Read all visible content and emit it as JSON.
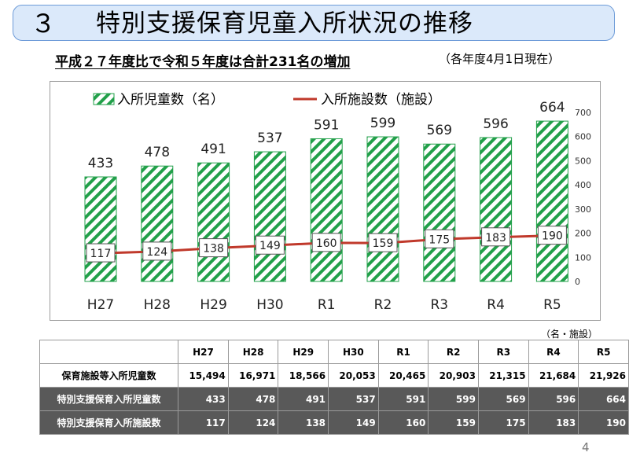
{
  "header": {
    "number": "３",
    "title": "特別支援保育児童入所状況の推移"
  },
  "subtitle": "平成２７年度比で令和５年度は合計231名の増加",
  "as_of_note": "（各年度4月1日現在）",
  "unit_note": "（名・施設）",
  "page_number": "4",
  "colors": {
    "bar_stripe": "#22a04a",
    "line": "#c0392b",
    "header_bg": "#dbe9fa",
    "header_border": "#6d9bd8",
    "dark_row_bg": "#595959"
  },
  "chart_data": {
    "type": "bar",
    "categories": [
      "H27",
      "H28",
      "H29",
      "H30",
      "R1",
      "R2",
      "R3",
      "R4",
      "R5"
    ],
    "series": [
      {
        "name": "入所児童数（名）",
        "kind": "bar",
        "values": [
          433,
          478,
          491,
          537,
          591,
          599,
          569,
          596,
          664
        ]
      },
      {
        "name": "入所施設数（施設）",
        "kind": "line",
        "values": [
          117,
          124,
          138,
          149,
          160,
          159,
          175,
          183,
          190
        ]
      }
    ],
    "ylim": [
      0,
      700
    ],
    "yticks": [
      "0",
      "100",
      "200",
      "300",
      "400",
      "500",
      "600",
      "700"
    ],
    "legend": [
      "入所児童数（名）",
      "入所施設数（施設）"
    ],
    "legend_position": "top-left",
    "grid": false
  },
  "table": {
    "headers": [
      "H27",
      "H28",
      "H29",
      "H30",
      "R1",
      "R2",
      "R3",
      "R4",
      "R5"
    ],
    "rows": [
      {
        "label": "保育施設等入所児童数",
        "values": [
          "15,494",
          "16,971",
          "18,566",
          "20,053",
          "20,465",
          "20,903",
          "21,315",
          "21,684",
          "21,926"
        ]
      },
      {
        "label": "特別支援保育入所児童数",
        "values": [
          "433",
          "478",
          "491",
          "537",
          "591",
          "599",
          "569",
          "596",
          "664"
        ]
      },
      {
        "label": "特別支援保育入所施設数",
        "values": [
          "117",
          "124",
          "138",
          "149",
          "160",
          "159",
          "175",
          "183",
          "190"
        ]
      }
    ]
  }
}
